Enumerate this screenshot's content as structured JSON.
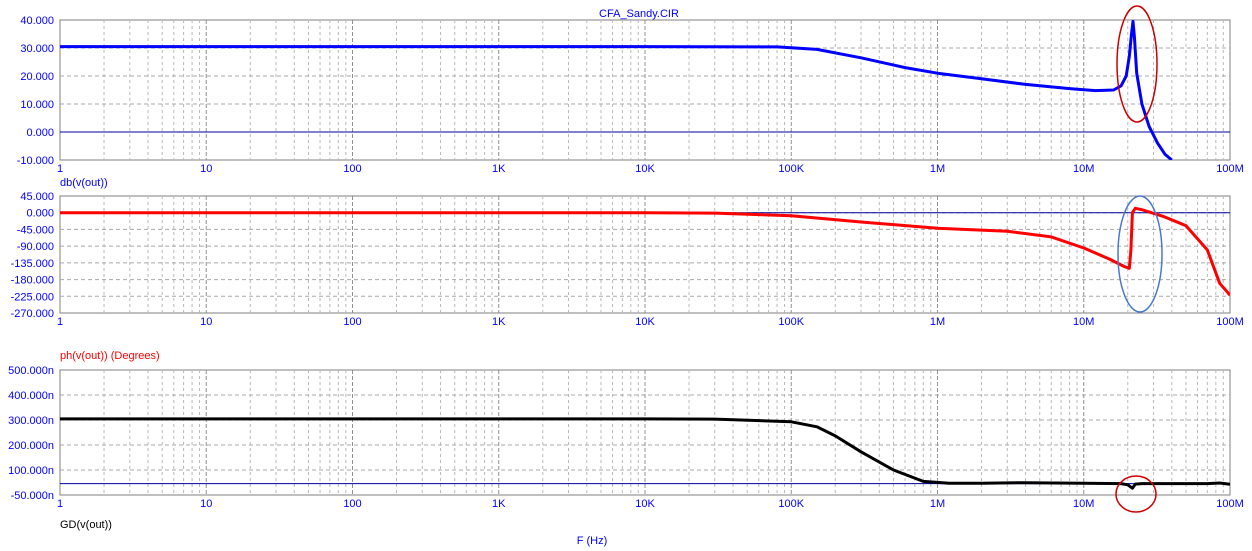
{
  "window_title": "CFA_Sandy.CIR",
  "x_axis_label": "F (Hz)",
  "x_ticks": [
    "1",
    "10",
    "100",
    "1K",
    "10K",
    "100K",
    "1M",
    "10M",
    "100M"
  ],
  "chart_data": [
    {
      "type": "line",
      "trace_label": "db(v(out))",
      "color": "#0000ff",
      "x_scale": "log",
      "xlim": [
        1,
        100000000
      ],
      "ylim": [
        -10,
        40
      ],
      "y_ticks": [
        "40.000",
        "30.000",
        "20.000",
        "10.000",
        "0.000",
        "-10.000"
      ],
      "grid": true,
      "zero_line": true,
      "series": [
        {
          "x": [
            1,
            10,
            100,
            1000,
            10000,
            80000,
            150000,
            300000,
            600000,
            1000000,
            2000000,
            4000000,
            8000000,
            12000000,
            16000000,
            18000000,
            19500000,
            20500000,
            21200000,
            21700000,
            22200000,
            23000000,
            25000000,
            28000000,
            32000000,
            36000000,
            40000000
          ],
          "y": [
            30.5,
            30.5,
            30.5,
            30.5,
            30.5,
            30.4,
            29.5,
            26.5,
            23,
            21,
            19,
            17,
            15.5,
            14.8,
            15,
            16.5,
            20,
            27,
            35,
            39.5,
            34,
            21,
            10,
            2,
            -4,
            -8,
            -10
          ]
        }
      ],
      "annotation": "red ellipse around resonance peak"
    },
    {
      "type": "line",
      "trace_label": "ph(v(out)) (Degrees)",
      "color": "#ff0000",
      "x_scale": "log",
      "xlim": [
        1,
        100000000
      ],
      "ylim": [
        -270,
        45
      ],
      "y_ticks": [
        "45.000",
        "0.000",
        "-45.000",
        "-90.000",
        "-135.000",
        "-180.000",
        "-225.000",
        "-270.000"
      ],
      "grid": true,
      "zero_line": true,
      "series": [
        {
          "x": [
            1,
            10,
            100,
            1000,
            10000,
            30000,
            100000,
            300000,
            1000000,
            3000000,
            6000000,
            10000000,
            15000000,
            19000000,
            20500000,
            21000000,
            21500000,
            22500000,
            25000000,
            35000000,
            50000000,
            70000000,
            85000000,
            100000000
          ],
          "y": [
            0,
            0,
            0,
            0,
            0,
            -1,
            -8,
            -25,
            -42,
            -50,
            -65,
            -95,
            -125,
            -145,
            -150,
            -100,
            0,
            12,
            8,
            -10,
            -35,
            -100,
            -190,
            -222
          ]
        }
      ],
      "annotation": "blue ellipse around phase jump"
    },
    {
      "type": "line",
      "trace_label": "GD(v(out))",
      "color": "#000000",
      "x_scale": "log",
      "xlim": [
        1,
        100000000
      ],
      "ylim": [
        -50,
        500
      ],
      "y_unit": "ns",
      "y_ticks": [
        "500.000n",
        "400.000n",
        "300.000n",
        "200.000n",
        "100.000n",
        "-50.000n"
      ],
      "grid": true,
      "zero_line": true,
      "series": [
        {
          "x": [
            1,
            10,
            100,
            1000,
            10000,
            30000,
            100000,
            150000,
            200000,
            300000,
            500000,
            800000,
            1200000,
            2000000,
            4000000,
            10000000,
            18000000,
            20000000,
            21500000,
            22500000,
            25000000,
            40000000,
            70000000,
            85000000,
            100000000
          ],
          "y": [
            285,
            285,
            285,
            285,
            285,
            284,
            272,
            250,
            210,
            140,
            60,
            10,
            2,
            2,
            4,
            2,
            0,
            -5,
            -20,
            -2,
            0,
            0,
            0,
            3,
            -3
          ]
        }
      ],
      "annotation": "red ellipse around group-delay glitch"
    }
  ]
}
